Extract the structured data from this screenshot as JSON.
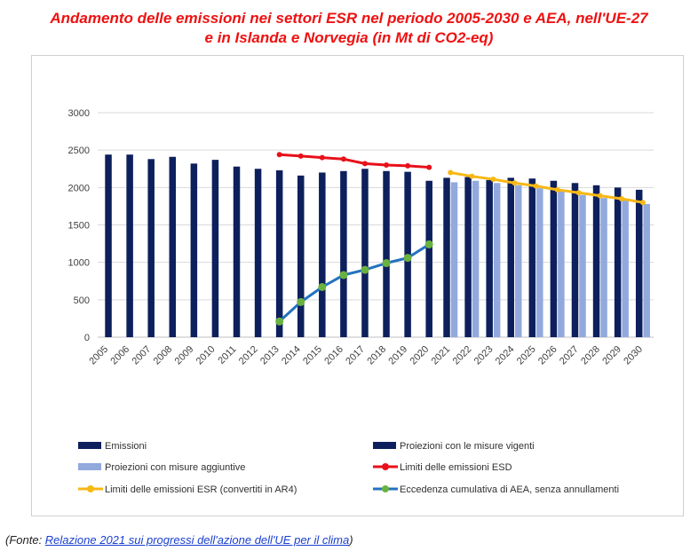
{
  "title_line1": "Andamento delle emissioni nei settori ESR nel periodo 2005-2030 e AEA, nell'UE-27",
  "title_line2": "e in Islanda e Norvegia (in Mt di CO2-eq)",
  "source_prefix": "(Fonte: ",
  "source_link": "Relazione 2021 sui progressi dell'azione dell'UE per il clima",
  "source_suffix": ")",
  "colors": {
    "emissioni": "#0d1f5c",
    "proiezioni_vigenti": "#0d1f5c",
    "proiezioni_aggiuntive": "#92a9dd",
    "limiti_esd": "#e8101a",
    "limiti_esr": "#f7b815",
    "eccedenza_line": "#2372c0",
    "eccedenza_marker": "#6ab23f"
  },
  "chart_data": {
    "type": "bar",
    "title": "Andamento delle emissioni nei settori ESR nel periodo 2005-2030 e AEA, nell'UE-27 e in Islanda e Norvegia (in Mt di CO2-eq)",
    "categories": [
      "2005",
      "2006",
      "2007",
      "2008",
      "2009",
      "2010",
      "2011",
      "2012",
      "2013",
      "2014",
      "2015",
      "2016",
      "2017",
      "2018",
      "2019",
      "2020",
      "2021",
      "2022",
      "2023",
      "2024",
      "2025",
      "2026",
      "2027",
      "2028",
      "2029",
      "2030"
    ],
    "ylim": [
      0,
      3000
    ],
    "yticks": [
      "0",
      "500",
      "1000",
      "1500",
      "2000",
      "2500",
      "3000"
    ],
    "grid": true,
    "legend_position": "bottom",
    "series": [
      {
        "name": "Emissioni",
        "type": "bar",
        "values": [
          2440,
          2440,
          2380,
          2410,
          2320,
          2370,
          2280,
          2250,
          2230,
          2160,
          2200,
          2220,
          2250,
          2220,
          2210,
          2090,
          null,
          null,
          null,
          null,
          null,
          null,
          null,
          null,
          null,
          null
        ]
      },
      {
        "name": "Proiezioni con le misure vigenti",
        "type": "bar",
        "values": [
          null,
          null,
          null,
          null,
          null,
          null,
          null,
          null,
          null,
          null,
          null,
          null,
          null,
          null,
          null,
          null,
          2130,
          2140,
          2100,
          2130,
          2120,
          2090,
          2060,
          2030,
          2000,
          1970
        ]
      },
      {
        "name": "Proiezioni con misure aggiuntive",
        "type": "bar",
        "values": [
          null,
          null,
          null,
          null,
          null,
          null,
          null,
          null,
          null,
          null,
          null,
          null,
          null,
          null,
          null,
          null,
          2070,
          2090,
          2060,
          2030,
          1990,
          1960,
          1900,
          1860,
          1830,
          1780
        ]
      },
      {
        "name": "Limiti delle emissioni ESD",
        "type": "line",
        "values": [
          null,
          null,
          null,
          null,
          null,
          null,
          null,
          null,
          2440,
          2420,
          2400,
          2380,
          2320,
          2300,
          2290,
          2270,
          null,
          null,
          null,
          null,
          null,
          null,
          null,
          null,
          null,
          null
        ]
      },
      {
        "name": "Limiti delle emissioni ESR (convertiti in AR4)",
        "type": "line",
        "values": [
          null,
          null,
          null,
          null,
          null,
          null,
          null,
          null,
          null,
          null,
          null,
          null,
          null,
          null,
          null,
          null,
          2200,
          2150,
          2110,
          2060,
          2020,
          1970,
          1930,
          1890,
          1850,
          1800
        ]
      },
      {
        "name": "Eccedenza cumulativa di AEA, senza annullamenti",
        "type": "line",
        "values": [
          null,
          null,
          null,
          null,
          null,
          null,
          null,
          null,
          210,
          470,
          670,
          830,
          900,
          990,
          1060,
          1240,
          null,
          null,
          null,
          null,
          null,
          null,
          null,
          null,
          null,
          null
        ]
      }
    ]
  }
}
